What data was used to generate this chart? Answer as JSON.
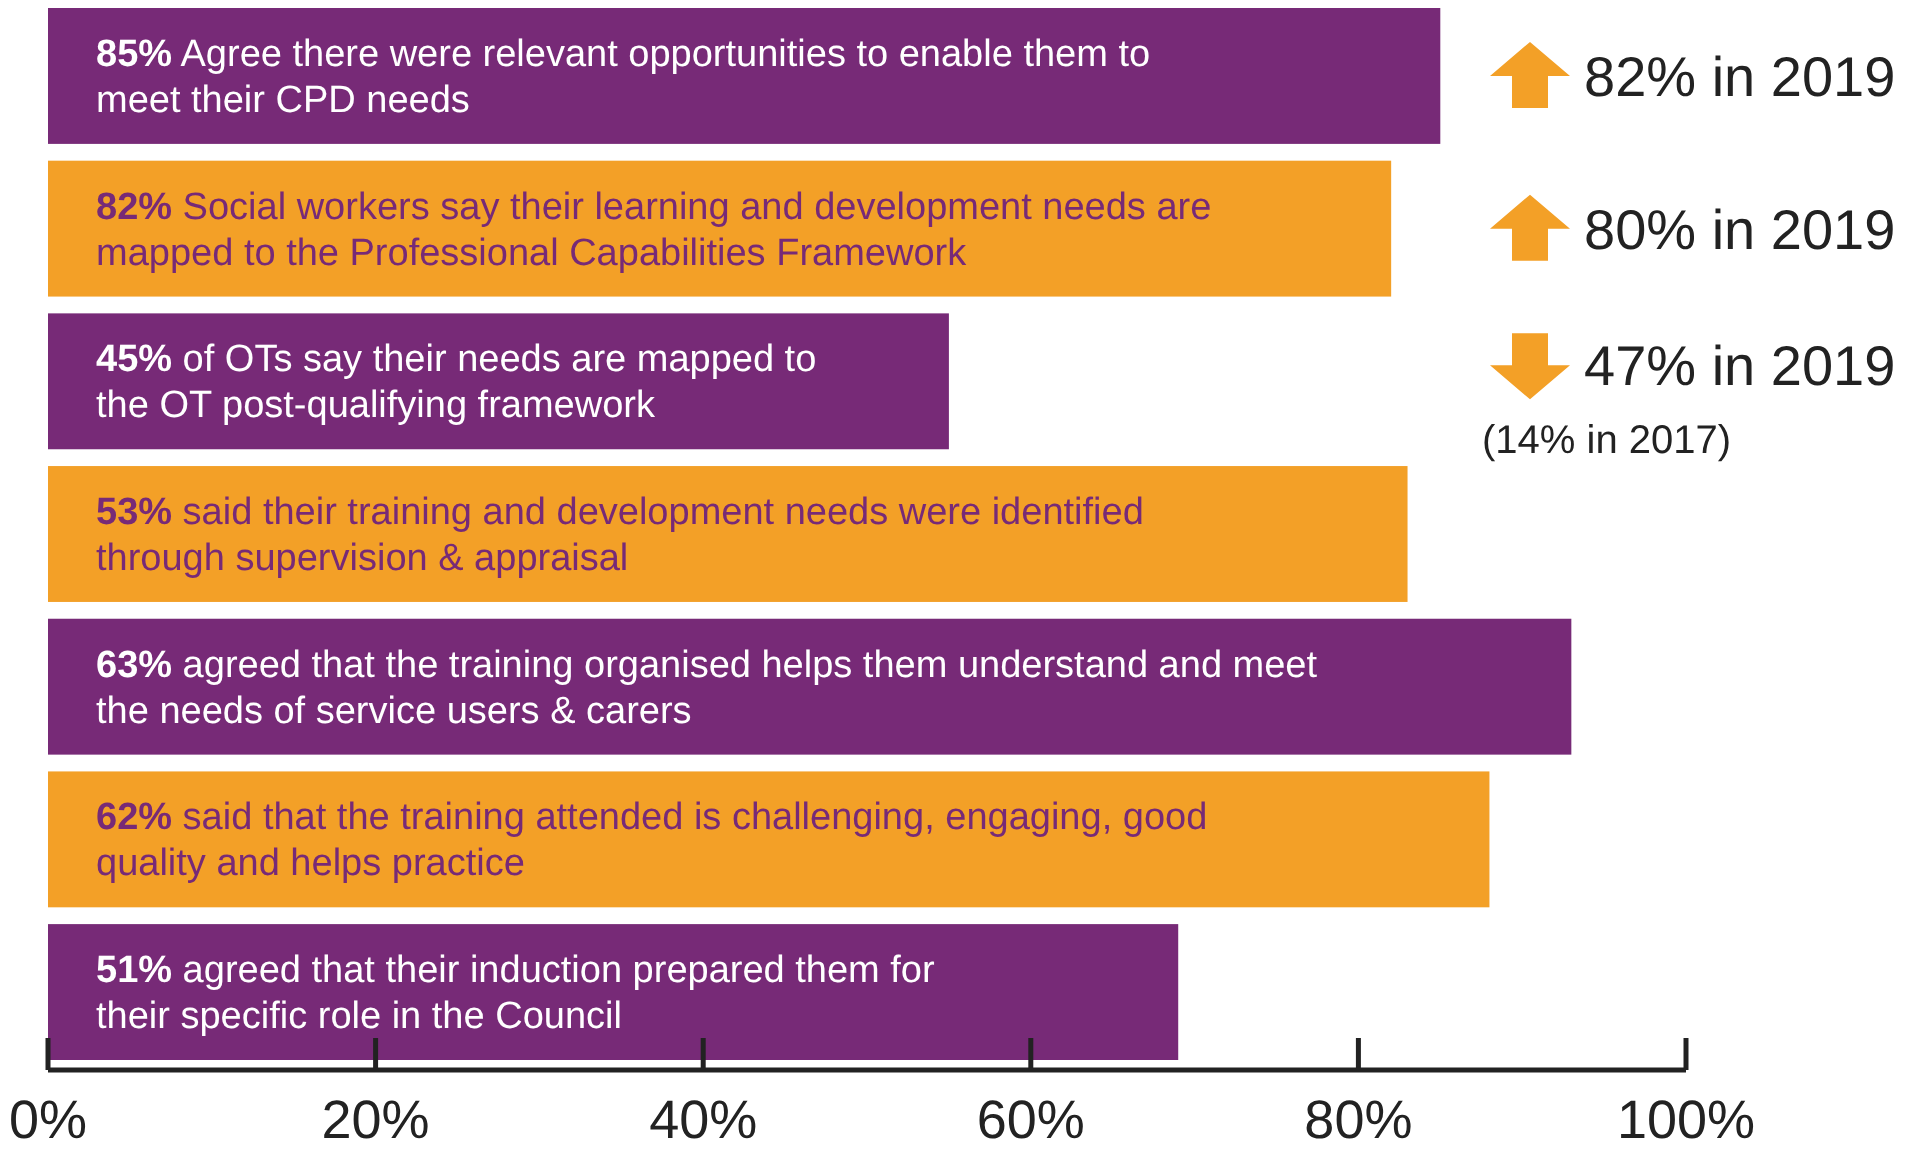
{
  "chart_data": {
    "type": "bar",
    "orientation": "horizontal",
    "categories": [
      "85% Agree there were relevant opportunities to enable them to\nmeet their CPD needs",
      "82% Social workers say their learning and development needs are\nmapped to the Professional Capabilities Framework",
      "45% of OTs say their needs are mapped to\nthe OT post-qualifying framework",
      "53% said their training and development needs were identified\nthrough supervision & appraisal",
      "63% agreed that the training organised helps them understand and meet\nthe needs of service users & carers",
      "62% said that the training attended is challenging, engaging, good\nquality and helps practice",
      "51% agreed that their induction prepared them for\ntheir specific role in the Council"
    ],
    "values": [
      85,
      82,
      55,
      83,
      93,
      88,
      69
    ],
    "colors": [
      "#772a77",
      "#f3a027",
      "#772a77",
      "#f3a027",
      "#772a77",
      "#f3a027",
      "#772a77"
    ],
    "xlim": [
      0,
      100
    ],
    "xticks": [
      {
        "value": 0,
        "label": "0%"
      },
      {
        "value": 20,
        "label": "20%"
      },
      {
        "value": 40,
        "label": "40%"
      },
      {
        "value": 60,
        "label": "60%"
      },
      {
        "value": 80,
        "label": "80%"
      },
      {
        "value": 100,
        "label": "100%"
      }
    ],
    "annotations": [
      "82% in 2019",
      "80% in 2019",
      "47% in 2019",
      "(14% in 2017)"
    ],
    "grid": false
  }
}
